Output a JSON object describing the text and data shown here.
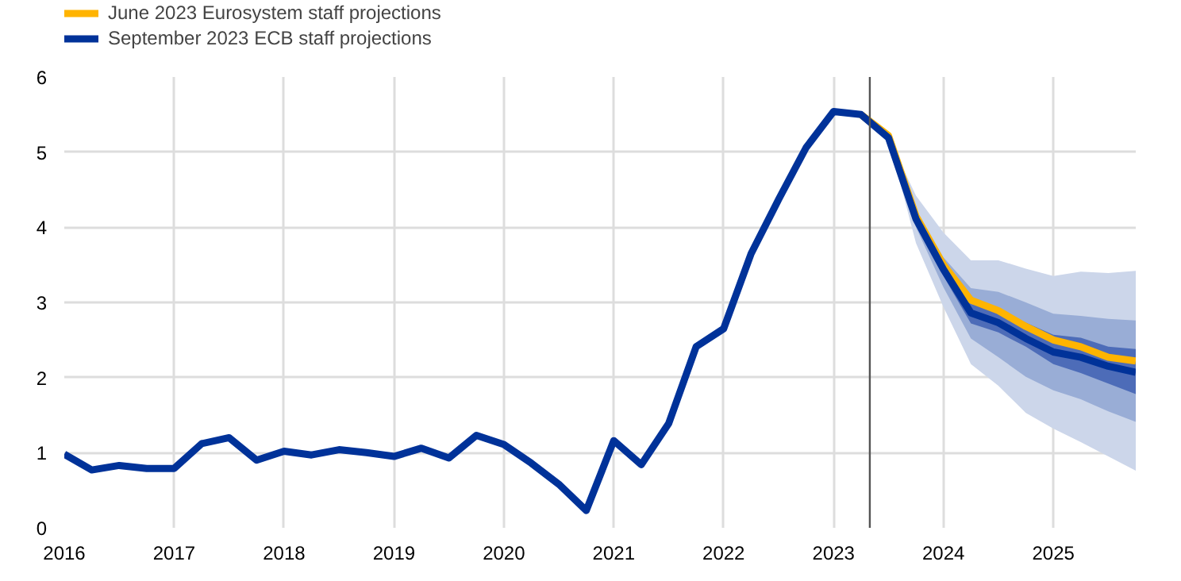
{
  "chart_data": {
    "type": "line",
    "x": [
      2016,
      2016.25,
      2016.5,
      2016.75,
      2017,
      2017.25,
      2017.5,
      2017.75,
      2018,
      2018.25,
      2018.5,
      2018.75,
      2019,
      2019.25,
      2019.5,
      2019.75,
      2020,
      2020.25,
      2020.5,
      2020.75,
      2021,
      2021.25,
      2021.5,
      2021.75,
      2022,
      2022.25,
      2022.5,
      2022.75,
      2023,
      2023.25,
      2023.5,
      2023.75,
      2024,
      2024.25,
      2024.5,
      2024.75,
      2025,
      2025.25,
      2025.5,
      2025.75
    ],
    "series": [
      {
        "type": "area",
        "color": "#ccd6ea",
        "x": [
          2023.5,
          2023.75,
          2024,
          2024.25,
          2024.5,
          2024.75,
          2025,
          2025.25,
          2025.5,
          2025.75
        ],
        "values": [
          null,
          null,
          null,
          null,
          null,
          null,
          null,
          null,
          null,
          null
        ],
        "lower": [
          5.19,
          3.79,
          2.94,
          2.18,
          1.89,
          1.53,
          1.32,
          1.14,
          0.95,
          0.76
        ],
        "upper": [
          5.19,
          4.42,
          3.93,
          3.56,
          3.56,
          3.45,
          3.35,
          3.41,
          3.39,
          3.42
        ]
      },
      {
        "type": "area",
        "color": "#99add6",
        "x": [
          2023.5,
          2023.75,
          2024,
          2024.25,
          2024.5,
          2024.75,
          2025,
          2025.25,
          2025.5,
          2025.75
        ],
        "values": [
          null,
          null,
          null,
          null,
          null,
          null,
          null,
          null,
          null,
          null
        ],
        "lower": [
          5.19,
          4.0,
          3.2,
          2.52,
          2.27,
          2.01,
          1.83,
          1.71,
          1.55,
          1.41
        ],
        "upper": [
          5.19,
          4.2,
          3.6,
          3.19,
          3.14,
          3.0,
          2.85,
          2.82,
          2.78,
          2.76
        ]
      },
      {
        "type": "area",
        "color": "#4d6cb8",
        "x": [
          2023.5,
          2023.75,
          2024,
          2024.25,
          2024.5,
          2024.75,
          2025,
          2025.25,
          2025.5,
          2025.75
        ],
        "values": [
          null,
          null,
          null,
          null,
          null,
          null,
          null,
          null,
          null,
          null
        ],
        "lower": [
          5.19,
          4.07,
          3.35,
          2.72,
          2.6,
          2.41,
          2.18,
          2.06,
          1.92,
          1.78
        ],
        "upper": [
          5.19,
          4.15,
          3.5,
          2.98,
          2.91,
          2.73,
          2.57,
          2.53,
          2.41,
          2.38
        ]
      },
      {
        "name": "June 2023 Eurosystem staff projections",
        "color": "#ffb400",
        "x": [
          2023.25,
          2023.5,
          2023.75,
          2024,
          2024.25,
          2024.5,
          2024.75,
          2025,
          2025.25,
          2025.5,
          2025.75
        ],
        "values": [
          5.5,
          5.22,
          4.15,
          3.5,
          3.03,
          2.89,
          2.68,
          2.5,
          2.41,
          2.27,
          2.22
        ]
      },
      {
        "name": "September 2023 ECB staff projections",
        "color": "#003299",
        "values": [
          0.98,
          0.77,
          0.83,
          0.79,
          0.79,
          1.12,
          1.2,
          0.9,
          1.02,
          0.97,
          1.04,
          1.0,
          0.95,
          1.06,
          0.93,
          1.23,
          1.11,
          0.86,
          0.58,
          0.23,
          1.16,
          0.84,
          1.39,
          2.41,
          2.65,
          3.65,
          4.37,
          5.06,
          5.54,
          5.5,
          5.19,
          4.11,
          3.44,
          2.86,
          2.73,
          2.52,
          2.34,
          2.27,
          2.15,
          2.07
        ]
      }
    ],
    "xlim": [
      2016,
      2025.75
    ],
    "xticks": [
      2016,
      2017,
      2018,
      2019,
      2020,
      2021,
      2022,
      2023,
      2024,
      2025
    ],
    "ylim": [
      0,
      6
    ],
    "yticks": [
      0,
      1,
      2,
      3,
      4,
      5,
      6
    ],
    "ref_lines": [
      {
        "axis": "x",
        "value": 2023.33,
        "color": "#555555"
      }
    ],
    "grid": true,
    "legend": "top left",
    "marker": "none",
    "line_style": "solid"
  }
}
